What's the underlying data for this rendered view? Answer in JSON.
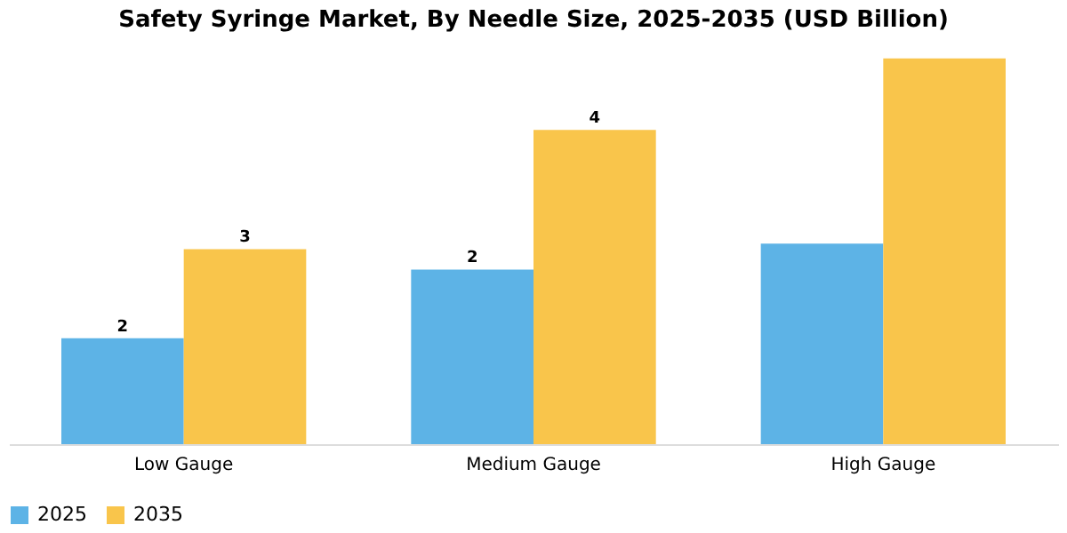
{
  "chart_data": {
    "type": "bar",
    "title": "Safety Syringe Market, By Needle Size, 2025-2035 (USD Billion)",
    "categories": [
      "Low Gauge",
      "Medium Gauge",
      "High Gauge"
    ],
    "tick_labels": "x",
    "legend": "bottom",
    "grid": false,
    "series": [
      {
        "name": "2025",
        "color": "#5db3e6",
        "values": [
          1.51,
          2.49,
          2.86
        ],
        "value_labels": [
          "2",
          "2",
          null
        ]
      },
      {
        "name": "2035",
        "color": "#f9c54b",
        "values": [
          2.78,
          4.48,
          5.5
        ],
        "value_labels": [
          "3",
          "4",
          null
        ]
      }
    ]
  }
}
